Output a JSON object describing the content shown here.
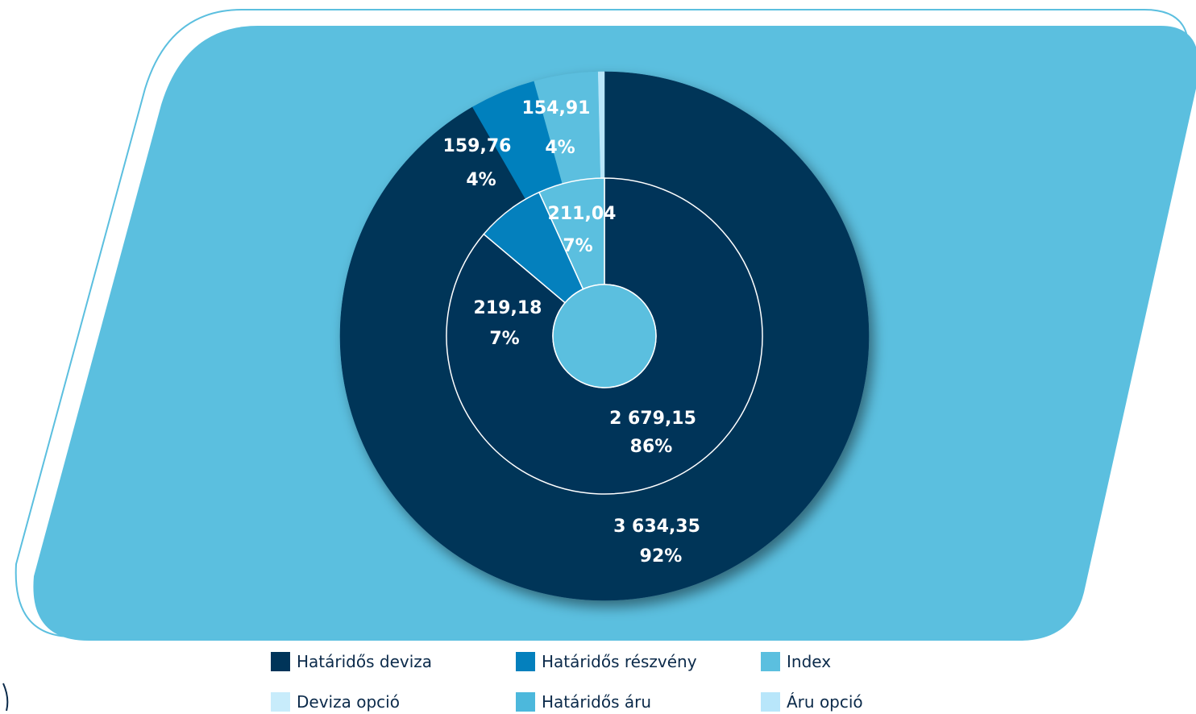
{
  "chart_data": {
    "type": "pie",
    "variant": "nested-donut",
    "legend_placement": "bottom",
    "categories": [
      "Határidős deviza",
      "Határidős részvény",
      "Index",
      "Deviza opció",
      "Határidős áru",
      "Áru opció"
    ],
    "colors": [
      "#003459",
      "#0480bd",
      "#5bbfdf",
      "#c8ecfb",
      "#4cb8dc",
      "#b8e6fa"
    ],
    "series": [
      {
        "ring": "outer",
        "values": [
          3634.35,
          159.76,
          154.91,
          0.0,
          0.0,
          15.0
        ],
        "labels": [
          {
            "value": "3  634,35",
            "percent": "92%"
          },
          {
            "value": "159,76",
            "percent": "4%"
          },
          {
            "value": "154,91",
            "percent": "4%"
          }
        ]
      },
      {
        "ring": "inner",
        "values": [
          2679.15,
          219.18,
          211.04,
          0.0,
          0.0,
          0.0
        ],
        "labels": [
          {
            "value": "2 679,15",
            "percent": "86%"
          },
          {
            "value": "219,18",
            "percent": "7%"
          },
          {
            "value": "211,04",
            "percent": "7%"
          }
        ]
      }
    ],
    "background_color": "#5bbfdf"
  }
}
